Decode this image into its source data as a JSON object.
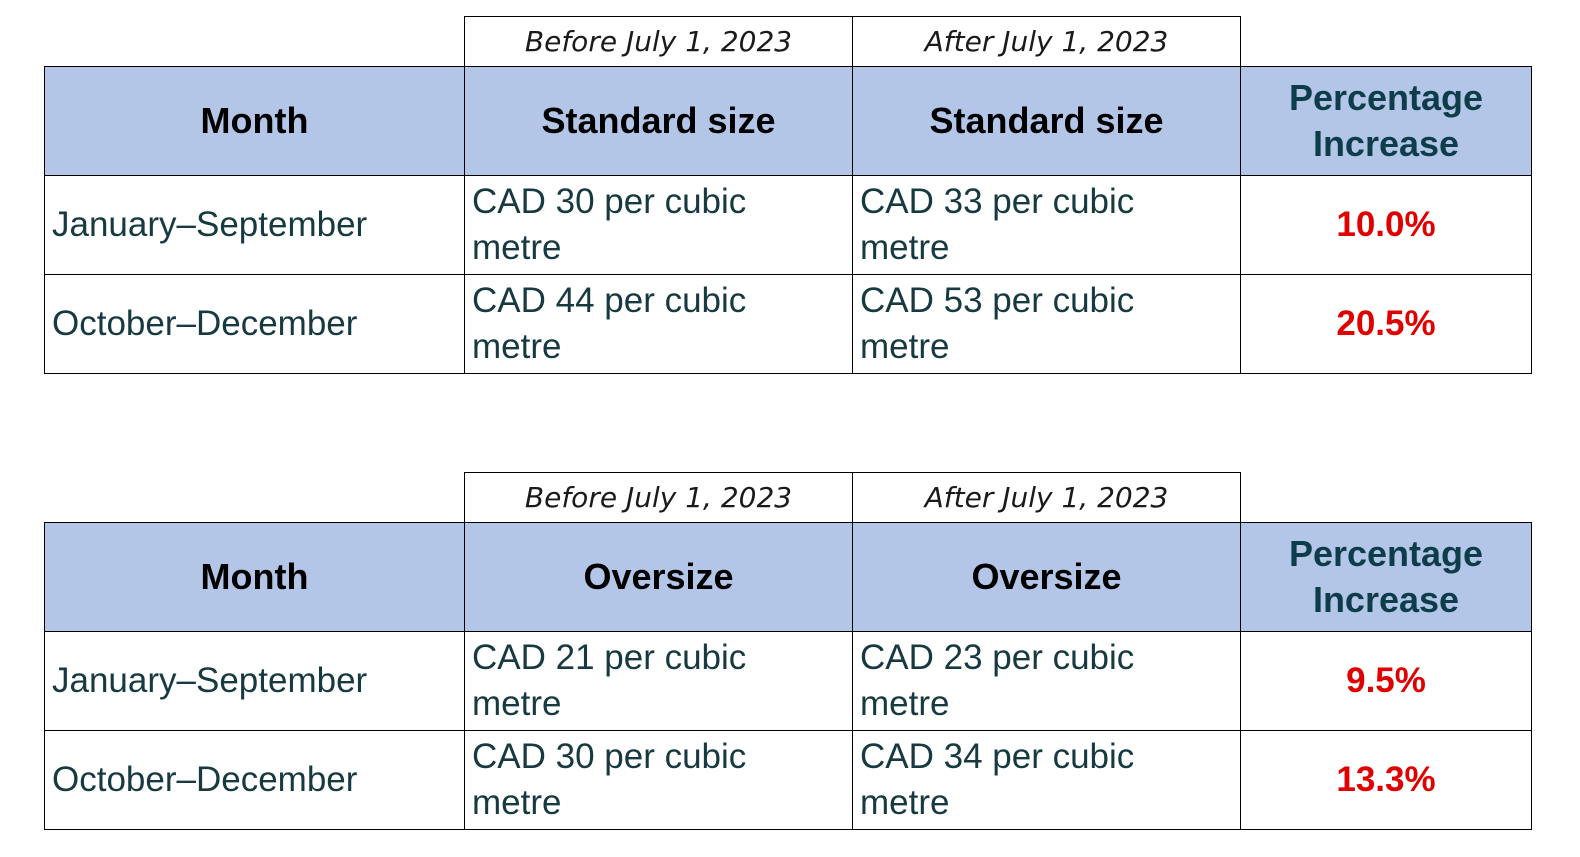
{
  "tables": [
    {
      "periods": {
        "before": "Before July 1, 2023",
        "after": "After July 1, 2023"
      },
      "headers": {
        "month": "Month",
        "before": "Standard size",
        "after": "Standard size",
        "pct_line1": "Percentage",
        "pct_line2": "Increase"
      },
      "rows": [
        {
          "month": "January–September",
          "before": "CAD 30 per cubic metre",
          "after": "CAD 33 per cubic metre",
          "pct": "10.0%"
        },
        {
          "month": "October–December",
          "before": "CAD 44 per cubic metre",
          "after": "CAD 53 per cubic metre",
          "pct": "20.5%"
        }
      ]
    },
    {
      "periods": {
        "before": "Before July 1, 2023",
        "after": "After July 1, 2023"
      },
      "headers": {
        "month": "Month",
        "before": "Oversize",
        "after": "Oversize",
        "pct_line1": "Percentage",
        "pct_line2": "Increase"
      },
      "rows": [
        {
          "month": "January–September",
          "before": "CAD 21 per cubic metre",
          "after": "CAD 23 per cubic metre",
          "pct": "9.5%"
        },
        {
          "month": "October–December",
          "before": "CAD 30 per cubic metre",
          "after": "CAD 34 per cubic metre",
          "pct": "13.3%"
        }
      ]
    }
  ],
  "colors": {
    "header_fill": "#b4c6e7",
    "percent_text": "#e00000",
    "body_text": "#173a40"
  }
}
